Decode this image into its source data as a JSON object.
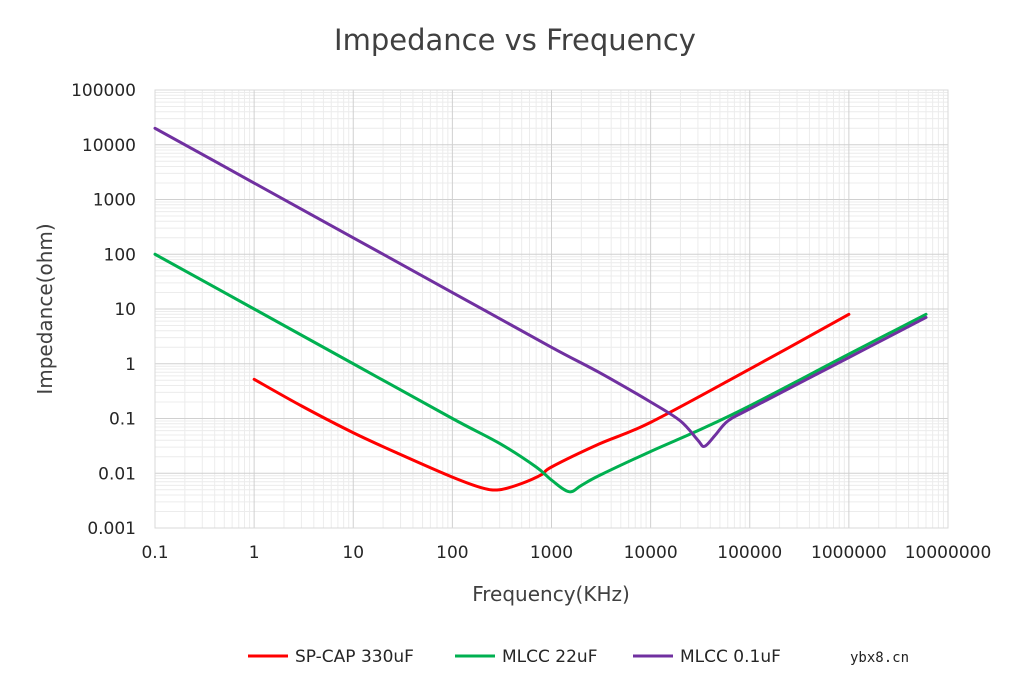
{
  "chart_data": {
    "type": "line",
    "title": "Impedance vs Frequency",
    "xlabel": "Frequency(KHz)",
    "ylabel": "Impedance(ohm)",
    "x_scale": "log",
    "y_scale": "log",
    "xlim": [
      0.1,
      10000000
    ],
    "ylim": [
      0.001,
      100000
    ],
    "x_ticks": [
      "0.1",
      "1",
      "10",
      "100",
      "1000",
      "10000",
      "100000",
      "1000000",
      "10000000"
    ],
    "y_ticks": [
      "0.001",
      "0.01",
      "0.1",
      "1",
      "10",
      "100",
      "1000",
      "10000",
      "100000"
    ],
    "grid": true,
    "legend_position": "bottom",
    "series": [
      {
        "name": "SP-CAP 330uF",
        "color": "#ff0000",
        "x": [
          1,
          3,
          10,
          30,
          100,
          200,
          300,
          500,
          800,
          1000,
          3000,
          10000,
          100000,
          1000000
        ],
        "y": [
          0.52,
          0.17,
          0.055,
          0.022,
          0.0085,
          0.0054,
          0.005,
          0.0065,
          0.0095,
          0.013,
          0.034,
          0.085,
          0.8,
          8
        ]
      },
      {
        "name": "MLCC 22uF",
        "color": "#00b050",
        "x": [
          0.1,
          1,
          10,
          100,
          300,
          700,
          1000,
          1500,
          2000,
          3000,
          10000,
          30000,
          100000,
          1000000,
          6000000
        ],
        "y": [
          100,
          10,
          1,
          0.1,
          0.035,
          0.013,
          0.0075,
          0.0046,
          0.006,
          0.009,
          0.025,
          0.06,
          0.17,
          1.5,
          8
        ]
      },
      {
        "name": "MLCC 0.1uF",
        "color": "#7030a0",
        "x": [
          0.1,
          1,
          10,
          100,
          1000,
          3000,
          10000,
          20000,
          30000,
          35000,
          45000,
          60000,
          100000,
          1000000,
          6000000
        ],
        "y": [
          20000,
          2000,
          200,
          20,
          2,
          0.7,
          0.2,
          0.09,
          0.04,
          0.031,
          0.05,
          0.09,
          0.15,
          1.3,
          7
        ]
      }
    ]
  },
  "watermark": "ybx8.cn"
}
